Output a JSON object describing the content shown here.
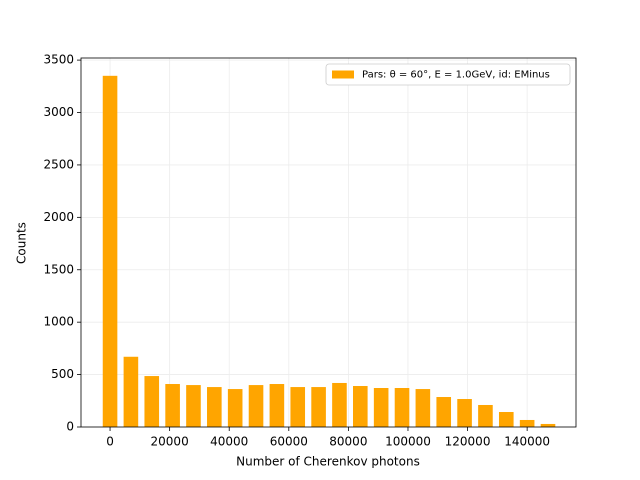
{
  "chart_data": {
    "type": "histogram",
    "xlabel": "Number of Cherenkov photons",
    "ylabel": "Counts",
    "bins": [
      -3500,
      3500,
      10500,
      17500,
      24500,
      31500,
      38500,
      45500,
      52500,
      59500,
      66500,
      73500,
      80500,
      87500,
      94500,
      101500,
      108500,
      115500,
      122500,
      129500,
      136500,
      143500,
      150500
    ],
    "series": [
      {
        "name": "Pars: θ = 60°, E = 1.0GeV, id: EMinus",
        "color": "#ffa500",
        "values": [
          3350,
          670,
          486,
          410,
          400,
          381,
          362,
          400,
          410,
          381,
          381,
          420,
          391,
          372,
          372,
          362,
          286,
          267,
          210,
          143,
          67,
          29
        ]
      }
    ],
    "xlim": [
      -9750,
      156400
    ],
    "ylim": [
      0,
      3520
    ],
    "xticks": [
      0,
      20000,
      40000,
      60000,
      80000,
      100000,
      120000,
      140000
    ],
    "yticks": [
      0,
      500,
      1000,
      1500,
      2000,
      2500,
      3000,
      3500
    ],
    "grid": true,
    "legend": "upper right"
  }
}
